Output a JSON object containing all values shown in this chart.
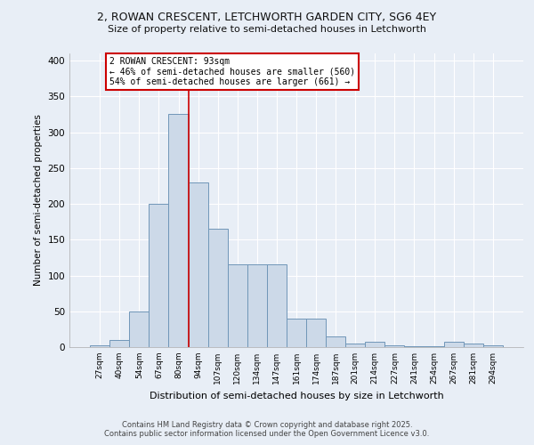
{
  "title1": "2, ROWAN CRESCENT, LETCHWORTH GARDEN CITY, SG6 4EY",
  "title2": "Size of property relative to semi-detached houses in Letchworth",
  "xlabel": "Distribution of semi-detached houses by size in Letchworth",
  "ylabel": "Number of semi-detached properties",
  "categories": [
    "27sqm",
    "40sqm",
    "54sqm",
    "67sqm",
    "80sqm",
    "94sqm",
    "107sqm",
    "120sqm",
    "134sqm",
    "147sqm",
    "161sqm",
    "174sqm",
    "187sqm",
    "201sqm",
    "214sqm",
    "227sqm",
    "241sqm",
    "254sqm",
    "267sqm",
    "281sqm",
    "294sqm"
  ],
  "values": [
    3,
    10,
    50,
    200,
    325,
    230,
    165,
    115,
    115,
    115,
    40,
    40,
    15,
    5,
    8,
    2,
    1,
    1,
    8,
    5,
    2
  ],
  "bar_color": "#ccd9e8",
  "bar_edge_color": "#7096b8",
  "vline_x_index": 5,
  "annotation_text": "2 ROWAN CRESCENT: 93sqm\n← 46% of semi-detached houses are smaller (560)\n54% of semi-detached houses are larger (661) →",
  "annotation_box_color": "#ffffff",
  "annotation_border_color": "#cc0000",
  "vline_color": "#cc0000",
  "footer1": "Contains HM Land Registry data © Crown copyright and database right 2025.",
  "footer2": "Contains public sector information licensed under the Open Government Licence v3.0.",
  "ylim": [
    0,
    410
  ],
  "yticks": [
    0,
    50,
    100,
    150,
    200,
    250,
    300,
    350,
    400
  ],
  "background_color": "#e8eef6",
  "grid_color": "#ffffff"
}
